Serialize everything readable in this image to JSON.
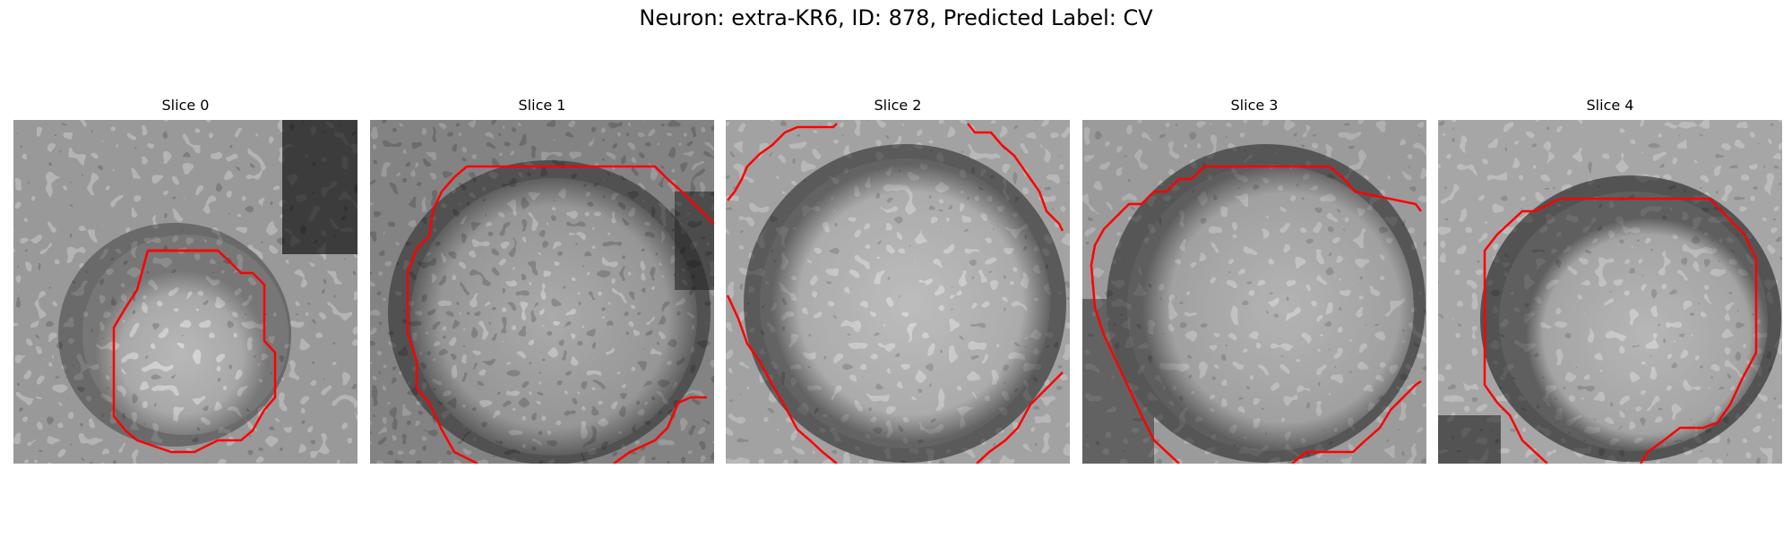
{
  "figure": {
    "title": "Neuron: extra-KR6, ID: 878, Predicted Label: CV"
  },
  "colors": {
    "contour": "#ff0000",
    "background": "#ffffff",
    "image_colormap": "grayscale"
  },
  "panels": [
    {
      "title": "Slice 0"
    },
    {
      "title": "Slice 1"
    },
    {
      "title": "Slice 2"
    },
    {
      "title": "Slice 3"
    },
    {
      "title": "Slice 4"
    }
  ]
}
